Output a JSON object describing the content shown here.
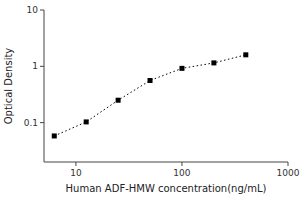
{
  "chart_data": {
    "type": "line",
    "x": [
      6.25,
      12.5,
      25,
      50,
      100,
      200,
      400
    ],
    "values": [
      0.058,
      0.103,
      0.25,
      0.56,
      0.92,
      1.15,
      1.6
    ],
    "color": "black",
    "marker": "square",
    "line_style": "dotted",
    "xlabel": "Human ADF-HMW concentration(ng/mL)",
    "ylabel": "Optical Density",
    "log": true,
    "xlim": [
      5,
      1000
    ],
    "ylim": [
      0.02,
      10
    ],
    "xticks": [
      10,
      100,
      1000
    ],
    "yticks": [
      0.1,
      1,
      10
    ],
    "grid": false
  }
}
